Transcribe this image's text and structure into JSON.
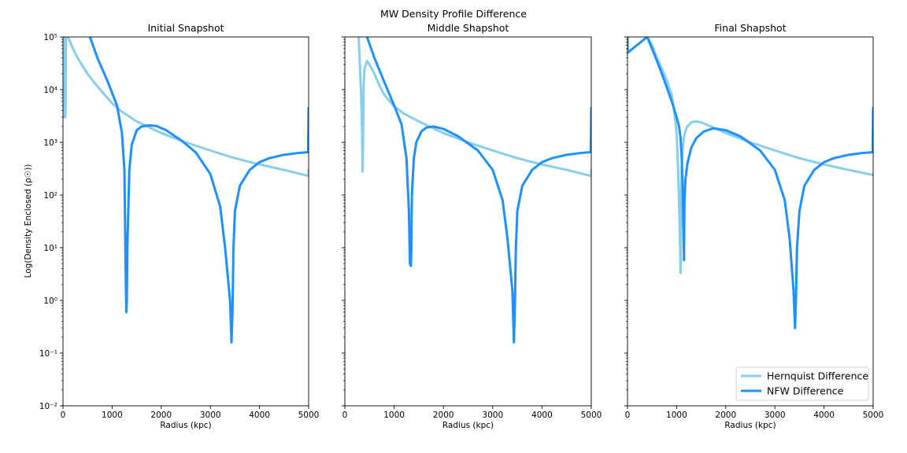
{
  "figure": {
    "suptitle": "MW Density Profile Difference"
  },
  "colors": {
    "hernquist": "#87ceeb",
    "nfw": "#1e90ff"
  },
  "legend": {
    "placement": "lower-right",
    "entries": [
      "Hernquist Difference",
      "NFW Difference"
    ]
  },
  "chart_data": [
    {
      "type": "line",
      "title": "Initial  Snapshot",
      "xlabel": "Radius (kpc)",
      "ylabel": "Log(Density Enclosed (ρ☉))",
      "xscale": "linear",
      "yscale": "log",
      "xlim": [
        0,
        5000
      ],
      "ylim": [
        0.01,
        100000
      ],
      "xticks": [
        "0",
        "1000",
        "2000",
        "3000",
        "4000",
        "5000"
      ],
      "yticks": [
        "10⁻²",
        "10⁻¹",
        "10⁰",
        "10¹",
        "10²",
        "10³",
        "10⁴",
        "10⁵"
      ],
      "grid": false,
      "series": [
        {
          "name": "Hernquist Difference",
          "x": [
            30,
            35,
            40,
            50,
            60,
            100,
            150,
            200,
            300,
            400,
            500,
            600,
            800,
            1000,
            1200,
            1500,
            2000,
            2500,
            3000,
            3500,
            4000,
            4500,
            5000,
            5000
          ],
          "y": [
            3000,
            100000,
            4000,
            3000,
            100000,
            100000,
            80000,
            60000,
            40000,
            28000,
            20000,
            15000,
            9000,
            5500,
            3800,
            2500,
            1500,
            1000,
            700,
            500,
            380,
            300,
            230,
            300
          ]
        },
        {
          "name": "NFW Difference",
          "x": [
            550,
            700,
            900,
            1100,
            1200,
            1250,
            1280,
            1290,
            1300,
            1310,
            1350,
            1400,
            1500,
            1600,
            1750,
            1900,
            2100,
            2400,
            2700,
            3000,
            3200,
            3300,
            3400,
            3430,
            3450,
            3470,
            3500,
            3600,
            3800,
            4000,
            4200,
            4500,
            4800,
            4990,
            5000,
            5000
          ],
          "y": [
            100000,
            40000,
            15000,
            5000,
            1500,
            300,
            2,
            0.6,
            1,
            10,
            300,
            900,
            1700,
            2000,
            2100,
            2050,
            1700,
            1100,
            650,
            250,
            60,
            10,
            1,
            0.16,
            0.6,
            10,
            50,
            150,
            300,
            420,
            500,
            580,
            630,
            650,
            4500,
            650
          ]
        }
      ]
    },
    {
      "type": "line",
      "title": "Middle Shapshot",
      "xlabel": "Radius (kpc)",
      "ylabel": "",
      "xscale": "linear",
      "yscale": "log",
      "xlim": [
        0,
        5000
      ],
      "ylim": [
        0.01,
        100000
      ],
      "xticks": [
        "0",
        "1000",
        "2000",
        "3000",
        "4000",
        "5000"
      ],
      "grid": false,
      "series": [
        {
          "name": "Hernquist Difference",
          "x": [
            280,
            330,
            350,
            360,
            370,
            380,
            400,
            450,
            500,
            600,
            700,
            800,
            1000,
            1200,
            1500,
            2000,
            2500,
            3000,
            3500,
            4000,
            4500,
            5000,
            5000
          ],
          "y": [
            100000,
            8000,
            1500,
            280,
            1200,
            12000,
            25000,
            35000,
            30000,
            20000,
            12000,
            8000,
            4800,
            3500,
            2500,
            1500,
            1000,
            700,
            500,
            380,
            300,
            230,
            300
          ]
        },
        {
          "name": "NFW Difference",
          "x": [
            450,
            600,
            800,
            1000,
            1150,
            1250,
            1300,
            1320,
            1340,
            1350,
            1360,
            1400,
            1450,
            1550,
            1650,
            1800,
            2000,
            2300,
            2700,
            3000,
            3200,
            3300,
            3400,
            3430,
            3450,
            3470,
            3500,
            3600,
            3800,
            4000,
            4200,
            4500,
            4800,
            4990,
            5000,
            5000
          ],
          "y": [
            100000,
            40000,
            14000,
            5000,
            2200,
            500,
            50,
            5,
            4.5,
            10,
            100,
            500,
            1000,
            1600,
            1900,
            2000,
            1800,
            1300,
            700,
            300,
            80,
            15,
            1.5,
            0.16,
            0.8,
            10,
            50,
            150,
            300,
            420,
            500,
            580,
            630,
            650,
            4500,
            650
          ]
        }
      ]
    },
    {
      "type": "line",
      "title": "Final Shapshot",
      "xlabel": "Radius (kpc)",
      "ylabel": "",
      "xscale": "linear",
      "yscale": "log",
      "xlim": [
        0,
        5000
      ],
      "ylim": [
        0.01,
        100000
      ],
      "xticks": [
        "0",
        "1000",
        "2000",
        "3000",
        "4000",
        "5000"
      ],
      "grid": false,
      "series": [
        {
          "name": "Hernquist Difference",
          "x": [
            400,
            500,
            600,
            700,
            800,
            900,
            950,
            1000,
            1030,
            1060,
            1080,
            1085,
            1090,
            1100,
            1120,
            1150,
            1200,
            1300,
            1400,
            1500,
            1700,
            2000,
            2500,
            3000,
            3500,
            4000,
            4500,
            5000
          ],
          "y": [
            100000,
            70000,
            40000,
            25000,
            15000,
            8000,
            4000,
            1500,
            300,
            30,
            3.3,
            8,
            100,
            300,
            700,
            1300,
            1900,
            2400,
            2500,
            2400,
            2000,
            1500,
            1000,
            700,
            500,
            380,
            300,
            240
          ]
        },
        {
          "name": "NFW Difference",
          "x": [
            0,
            0,
            0,
            400,
            500,
            600,
            700,
            800,
            900,
            1000,
            1050,
            1080,
            1100,
            1120,
            1140,
            1150,
            1160,
            1180,
            1220,
            1300,
            1400,
            1550,
            1750,
            2000,
            2300,
            2700,
            3000,
            3200,
            3300,
            3380,
            3410,
            3430,
            3450,
            3500,
            3600,
            3800,
            4000,
            4200,
            4500,
            4800,
            4990,
            5000,
            5000
          ],
          "y": [
            50000,
            100000,
            50000,
            100000,
            60000,
            35000,
            20000,
            11000,
            6000,
            3000,
            2000,
            1200,
            600,
            200,
            20,
            5.8,
            80,
            200,
            400,
            800,
            1200,
            1600,
            1850,
            1700,
            1300,
            700,
            300,
            80,
            15,
            1.5,
            0.3,
            1.2,
            10,
            50,
            150,
            300,
            420,
            500,
            580,
            630,
            650,
            4500,
            650
          ]
        }
      ]
    }
  ]
}
